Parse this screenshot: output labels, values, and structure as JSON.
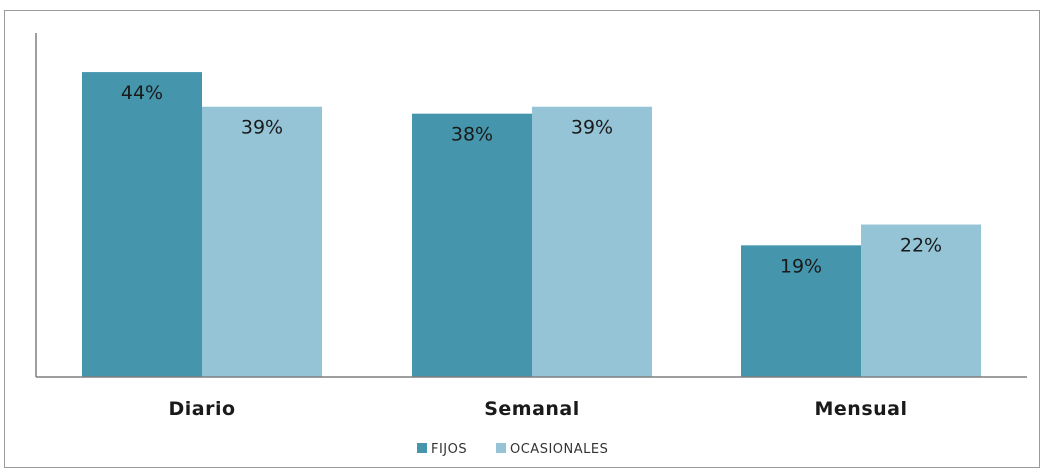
{
  "chart_data": {
    "type": "bar",
    "categories": [
      "Diario",
      "Semanal",
      "Mensual"
    ],
    "series": [
      {
        "name": "FIJOS",
        "values": [
          44,
          38,
          19
        ],
        "labels": [
          "44%",
          "38%",
          "19%"
        ],
        "color": "#4596ad"
      },
      {
        "name": "OCASIONALES",
        "values": [
          39,
          39,
          22
        ],
        "labels": [
          "39%",
          "39%",
          "22%"
        ],
        "color": "#94c4d6"
      }
    ],
    "title": "",
    "xlabel": "",
    "ylabel": "",
    "ylim": [
      0,
      50
    ],
    "grid": false,
    "legend": "bottom"
  }
}
